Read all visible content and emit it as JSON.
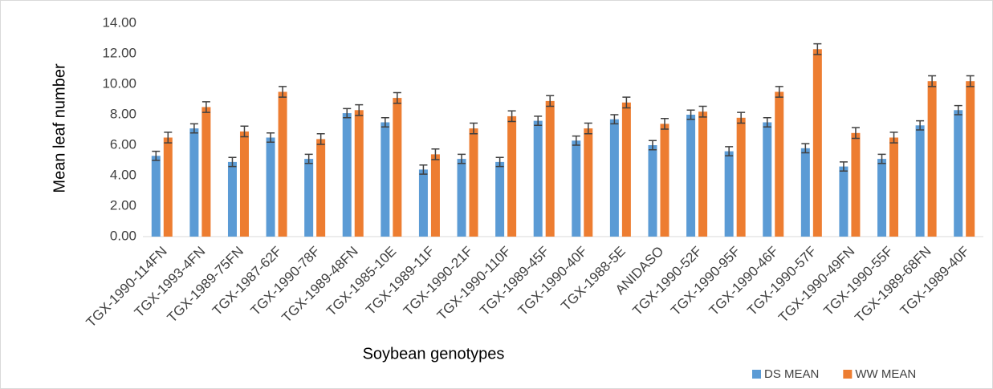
{
  "chart_data": {
    "type": "bar",
    "x_label": "Soybean genotypes",
    "y_label": "Mean leaf number",
    "categories": [
      "TGX-1990-114FN",
      "TGX-1993-4FN",
      "TGX-1989-75FN",
      "TGX-1987-62F",
      "TGX-1990-78F",
      "TGX-1989-48FN",
      "TGX-1985-10E",
      "TGX-1989-11F",
      "TGX-1990-21F",
      "TGX-1990-110F",
      "TGX-1989-45F",
      "TGX-1990-40F",
      "TGX-1988-5E",
      "ANIDASO",
      "TGX-1990-52F",
      "TGX-1990-95F",
      "TGX-1990-46F",
      "TGX-1990-57F",
      "TGX-1990-49FN",
      "TGX-1990-55F",
      "TGX-1989-68FN",
      "TGX-1989-40F"
    ],
    "series": [
      {
        "name": "DS MEAN",
        "color": "#5b9bd5",
        "values": [
          5.3,
          7.1,
          4.9,
          6.5,
          5.1,
          8.1,
          7.5,
          4.4,
          5.1,
          4.9,
          7.6,
          6.3,
          7.7,
          6.0,
          8.0,
          5.6,
          7.5,
          5.8,
          4.6,
          5.1,
          7.3,
          8.3
        ],
        "errors": [
          0.3,
          0.3,
          0.3,
          0.3,
          0.3,
          0.3,
          0.3,
          0.3,
          0.3,
          0.3,
          0.3,
          0.3,
          0.3,
          0.3,
          0.3,
          0.3,
          0.3,
          0.3,
          0.3,
          0.3,
          0.3,
          0.3
        ]
      },
      {
        "name": "WW MEAN",
        "color": "#ed7d31",
        "values": [
          6.5,
          8.5,
          6.9,
          9.5,
          6.4,
          8.3,
          9.1,
          5.4,
          7.1,
          7.9,
          8.9,
          7.1,
          8.8,
          7.4,
          8.2,
          7.8,
          9.5,
          12.3,
          6.8,
          6.5,
          10.2,
          10.2
        ],
        "errors": [
          0.35,
          0.35,
          0.35,
          0.35,
          0.35,
          0.35,
          0.35,
          0.35,
          0.35,
          0.35,
          0.35,
          0.35,
          0.35,
          0.35,
          0.35,
          0.35,
          0.35,
          0.35,
          0.35,
          0.35,
          0.35,
          0.35
        ]
      }
    ],
    "ylim": [
      0,
      14
    ],
    "yticks": [
      {
        "value": 0,
        "label": "0.00"
      },
      {
        "value": 2,
        "label": "2.00"
      },
      {
        "value": 4,
        "label": "4.00"
      },
      {
        "value": 6,
        "label": "6.00"
      },
      {
        "value": 8,
        "label": "8.00"
      },
      {
        "value": 10,
        "label": "10.00"
      },
      {
        "value": 12,
        "label": "12.00"
      },
      {
        "value": 14,
        "label": "14.00"
      }
    ],
    "grid": false,
    "legend_position": "bottom-right"
  }
}
